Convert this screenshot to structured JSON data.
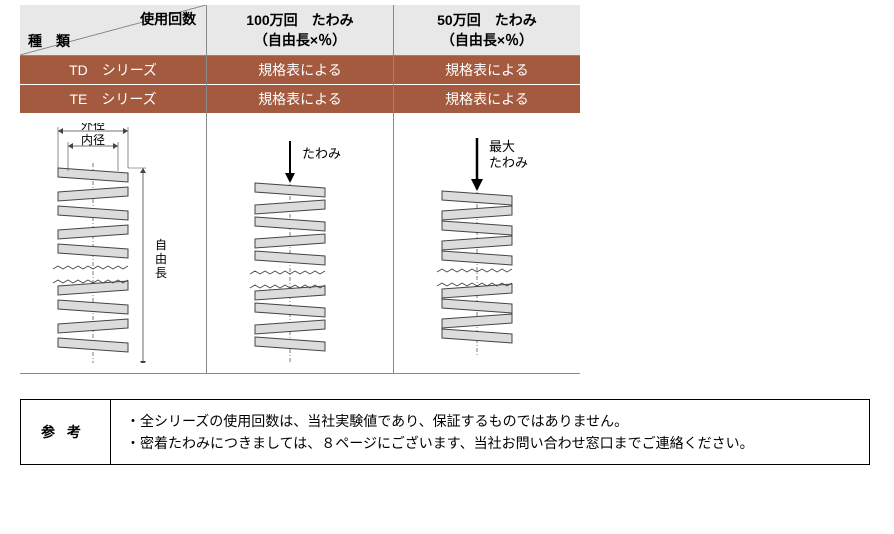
{
  "table": {
    "header": {
      "diagonal_top": "使用回数",
      "diagonal_bottom": "種　類",
      "col2_line1": "100万回　たわみ",
      "col2_line2": "（自由長×％）",
      "col3_line1": "50万回　たわみ",
      "col3_line2": "（自由長×％）"
    },
    "rows": [
      {
        "label": "TD　シリーズ",
        "col2": "規格表による",
        "col3": "規格表による",
        "bg": "#a35a3f"
      },
      {
        "label": "TE　シリーズ",
        "col2": "規格表による",
        "col3": "規格表による",
        "bg": "#a35a3f"
      }
    ]
  },
  "diagrams": {
    "spring": {
      "fill": "#dcdcdc",
      "stroke": "#444",
      "dim_color": "#444"
    },
    "col1": {
      "label_outer": "外径",
      "label_inner": "内径",
      "label_height": "自由長"
    },
    "col2": {
      "label": "たわみ"
    },
    "col3": {
      "label_line1": "最大",
      "label_line2": "たわみ"
    }
  },
  "reference": {
    "label": "参 考",
    "line1": "・全シリーズの使用回数は、当社実験値であり、保証するものではありません。",
    "line2": "・密着たわみにつきましては、８ページにございます、当社お問い合わせ窓口までご連絡ください。"
  }
}
